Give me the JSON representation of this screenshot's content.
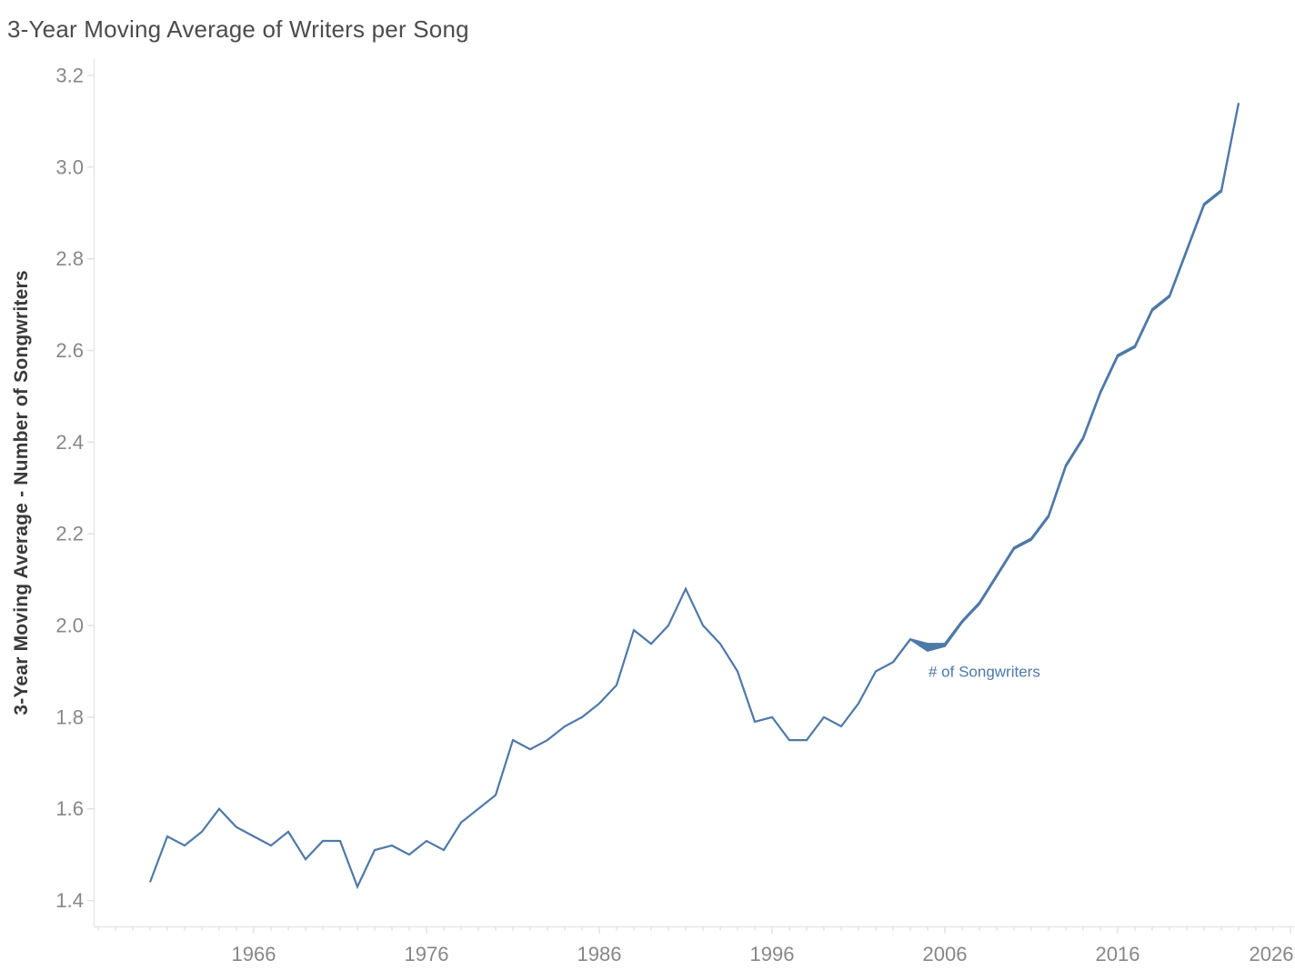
{
  "window": {
    "title": "3-Year Moving Average of Writers per Song"
  },
  "chart_data": {
    "type": "line",
    "title": "3-Year Moving Average of Writers per Song",
    "xlabel": "",
    "ylabel": "3-Year Moving Average - Number of Songwriters",
    "x_tick_labels": [
      1966,
      1976,
      1986,
      1996,
      2006,
      2016,
      2026
    ],
    "x_minor_tick_start_year": 1957,
    "x_minor_tick_end_year": 2026,
    "y_tick_labels": [
      3.2,
      3.0,
      2.8,
      2.6,
      2.4,
      2.2,
      2.0,
      1.8,
      1.6,
      1.4
    ],
    "xlim": [
      1956.7,
      2026.3
    ],
    "ylim": [
      1.34,
      3.23
    ],
    "grid": false,
    "legend_position": "none",
    "annotation": {
      "text": "# of Songwriters",
      "anchor_year": 2005,
      "anchor_value": 1.9
    },
    "colors": {
      "line": "#4e79a7",
      "axis": "#e6e6e6",
      "tick": "#e0e0e0",
      "tick_label": "#878787",
      "title": "#4c4c4c",
      "axis_title": "#3a3a3a",
      "annotation": "#4e79a7"
    },
    "fill_between_years": [
      2004,
      2006
    ],
    "series": [
      {
        "name": "# of Songwriters",
        "years": [
          1960,
          1961,
          1962,
          1963,
          1964,
          1965,
          1966,
          1967,
          1968,
          1969,
          1970,
          1971,
          1972,
          1973,
          1974,
          1975,
          1976,
          1977,
          1978,
          1979,
          1980,
          1981,
          1982,
          1983,
          1984,
          1985,
          1986,
          1987,
          1988,
          1989,
          1990,
          1991,
          1992,
          1993,
          1994,
          1995,
          1996,
          1997,
          1998,
          1999,
          2000,
          2001,
          2002,
          2003,
          2004,
          2005,
          2006,
          2007,
          2008,
          2009,
          2010,
          2011,
          2012,
          2013,
          2014,
          2015,
          2016,
          2017,
          2018,
          2019,
          2020,
          2021,
          2022,
          2023
        ],
        "values": [
          1.44,
          1.54,
          1.52,
          1.55,
          1.6,
          1.56,
          1.54,
          1.52,
          1.55,
          1.49,
          1.53,
          1.53,
          1.43,
          1.51,
          1.52,
          1.5,
          1.53,
          1.51,
          1.57,
          1.6,
          1.63,
          1.75,
          1.73,
          1.75,
          1.78,
          1.8,
          1.83,
          1.87,
          1.99,
          1.96,
          2.0,
          2.08,
          2.0,
          1.96,
          1.9,
          1.79,
          1.8,
          1.75,
          1.75,
          1.8,
          1.78,
          1.83,
          1.9,
          1.92,
          1.97,
          1.96,
          1.96,
          2.01,
          2.05,
          2.11,
          2.17,
          2.19,
          2.24,
          2.35,
          2.41,
          2.51,
          2.59,
          2.61,
          2.69,
          2.72,
          2.82,
          2.92,
          2.95,
          3.14
        ]
      },
      {
        "name": "overlapping unlabeled companion line",
        "years": [
          2003,
          2004,
          2005,
          2006,
          2007,
          2008,
          2009,
          2010,
          2011,
          2012,
          2013,
          2014,
          2015,
          2016,
          2017,
          2018,
          2019,
          2020,
          2021,
          2022,
          2023
        ],
        "values": [
          1.92,
          1.97,
          1.945,
          1.955,
          2.007,
          2.047,
          2.107,
          2.167,
          2.187,
          2.237,
          2.347,
          2.407,
          2.507,
          2.587,
          2.607,
          2.687,
          2.717,
          2.817,
          2.917,
          2.947,
          3.14
        ]
      }
    ]
  }
}
